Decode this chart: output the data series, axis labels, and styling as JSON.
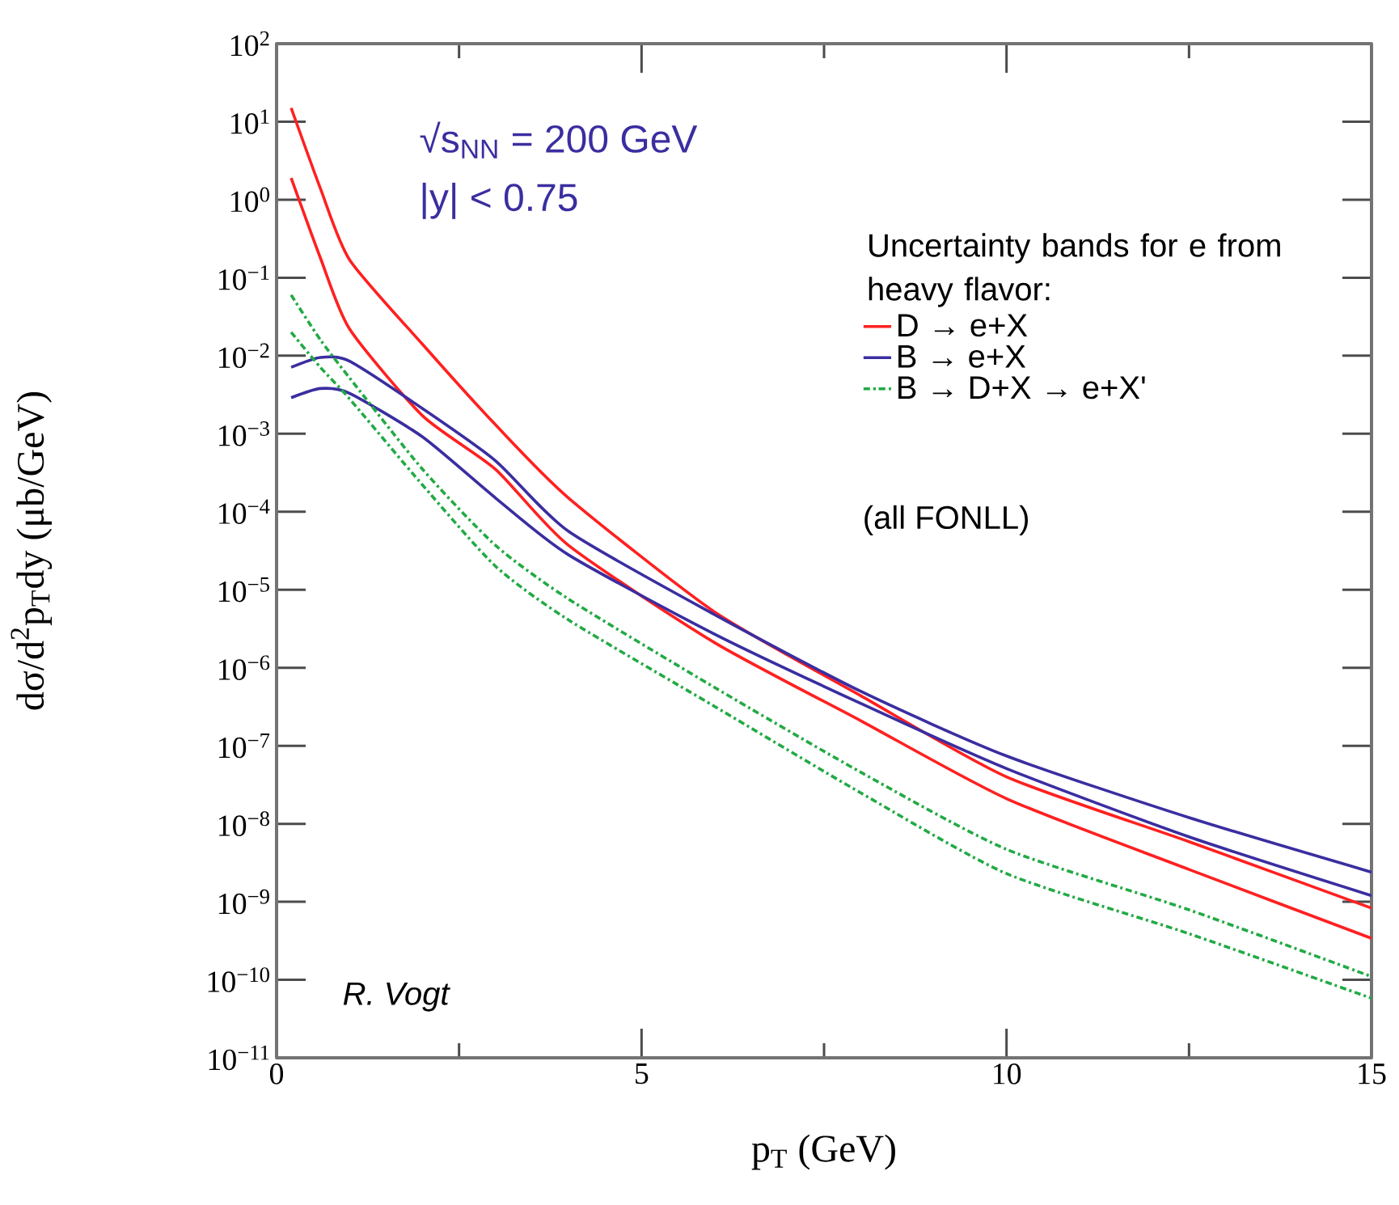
{
  "chart_data": {
    "type": "line",
    "xlabel": "p$_{T}$ (GeV)",
    "ylabel": "dσ/d$^{2}$p$_{T}$dy (μb/GeV)",
    "legend_title": "Uncertainty bands for e from heavy flavor:",
    "annotations": [
      "√s$_{NN}$ = 200 GeV",
      "|y| < 0.75",
      "(all FONLL)",
      "R. Vogt"
    ],
    "log": "y",
    "legend": "top right",
    "marker": "none",
    "xlim": [
      0,
      15
    ],
    "xticks": [
      0,
      5,
      10,
      15
    ],
    "ylim": [
      1e-11,
      100
    ],
    "yticks": [
      {
        "value": 1e-11,
        "label": "10$^{−11}$"
      },
      {
        "value": 1e-10,
        "label": "10$^{−10}$"
      },
      {
        "value": 1e-09,
        "label": "10$^{−9}$"
      },
      {
        "value": 1e-08,
        "label": "10$^{−8}$"
      },
      {
        "value": 1e-07,
        "label": "10$^{−7}$"
      },
      {
        "value": 1e-06,
        "label": "10$^{−6}$"
      },
      {
        "value": 1e-05,
        "label": "10$^{−5}$"
      },
      {
        "value": 0.0001,
        "label": "10$^{−4}$"
      },
      {
        "value": 0.001,
        "label": "10$^{−3}$"
      },
      {
        "value": 0.01,
        "label": "10$^{−2}$"
      },
      {
        "value": 0.1,
        "label": "10$^{−1}$"
      },
      {
        "value": 1,
        "label": "10$^{0}$"
      },
      {
        "value": 10,
        "label": "10$^{1}$"
      },
      {
        "value": 100,
        "label": "10$^{2}$"
      }
    ],
    "x": [
      0.2,
      0.6,
      1,
      2,
      3,
      4,
      6,
      8,
      10,
      12.5,
      15
    ],
    "series": [
      {
        "name": "D → e+X",
        "color": "#ff2020",
        "line_style": "solid",
        "values": [
          15,
          1.4,
          0.17,
          0.014,
          0.0013,
          0.00015,
          5.2e-06,
          4.4e-07,
          4e-08,
          5.9e-09,
          8.3e-10
        ]
      },
      {
        "color": "#ff2020",
        "line_style": "solid",
        "values": [
          1.9,
          0.18,
          0.022,
          0.0017,
          0.00035,
          3.7e-05,
          2.1e-06,
          2.1e-07,
          2.1e-08,
          2.6e-09,
          3.4e-10
        ]
      },
      {
        "name": "B → e+X",
        "color": "#3a2ea0",
        "line_style": "solid",
        "values": [
          0.0071,
          0.0095,
          0.0085,
          0.0021,
          0.00045,
          5.6e-05,
          4.8e-06,
          5e-07,
          7.4e-08,
          1.2e-08,
          2.4e-09
        ]
      },
      {
        "color": "#3a2ea0",
        "line_style": "solid",
        "values": [
          0.0029,
          0.0038,
          0.0033,
          0.00091,
          0.00015,
          2.8e-05,
          2.7e-06,
          3.5e-07,
          5.1e-08,
          6.8e-09,
          1.2e-09
        ]
      },
      {
        "name": "B → D+X → e+X'",
        "color": "#22aa44",
        "line_style": "dashed",
        "values": [
          0.06,
          0.016,
          0.0052,
          0.00035,
          3.7e-05,
          7.6e-06,
          5.6e-07,
          4.6e-08,
          4.7e-09,
          7.9e-10,
          1.1e-10
        ]
      },
      {
        "color": "#22aa44",
        "line_style": "dashed",
        "values": [
          0.02,
          0.0071,
          0.0028,
          0.00022,
          2e-05,
          4.1e-06,
          3.2e-07,
          2.5e-08,
          2.3e-09,
          3.9e-10,
          5.8e-11
        ]
      }
    ]
  }
}
